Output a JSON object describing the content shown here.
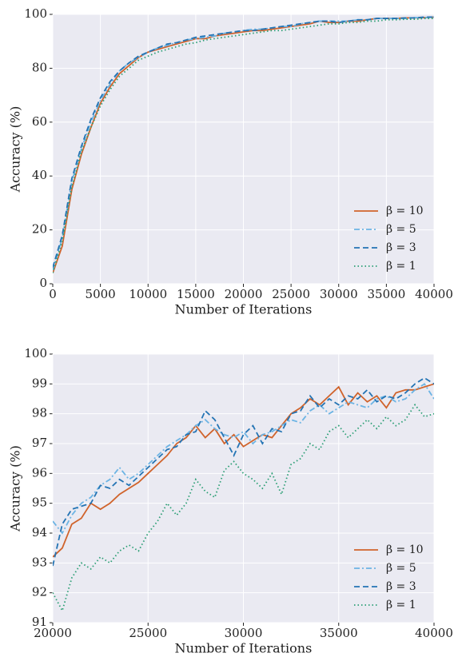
{
  "chart_data": [
    {
      "type": "line",
      "xlabel": "Number of Iterations",
      "ylabel": "Accuracy (%)",
      "x": [
        0,
        1000,
        2000,
        3000,
        4000,
        5000,
        6000,
        7000,
        8000,
        9000,
        10000,
        11000,
        12000,
        13000,
        14000,
        15000,
        16000,
        17000,
        18000,
        19000,
        20000,
        21000,
        22000,
        23000,
        24000,
        25000,
        26000,
        27000,
        28000,
        29000,
        30000,
        31000,
        32000,
        33000,
        34000,
        35000,
        36000,
        37000,
        38000,
        39000,
        40000
      ],
      "series": [
        {
          "name": "β = 10",
          "color": "#d0632b",
          "linestyle": "solid",
          "values": [
            4,
            14,
            35,
            48,
            58,
            67,
            73,
            78,
            81,
            84,
            86,
            87,
            88,
            89,
            90,
            91,
            91,
            92,
            92.5,
            93,
            93.5,
            94,
            94,
            94.5,
            95,
            95.5,
            96,
            96.5,
            97.5,
            97,
            97,
            97.5,
            97.5,
            98,
            98.5,
            98.5,
            98.5,
            98.7,
            98.7,
            98.8,
            99
          ]
        },
        {
          "name": "β = 5",
          "color": "#6cb4e4",
          "linestyle": "dashdot",
          "values": [
            5,
            17,
            38,
            50,
            60,
            68,
            74,
            79,
            82,
            84,
            86,
            87.5,
            88.5,
            89.5,
            90.5,
            91,
            91.5,
            92,
            93,
            93.5,
            94,
            94.5,
            94.5,
            95,
            95.5,
            95.5,
            96.5,
            97,
            97.5,
            97.5,
            97.5,
            97.5,
            98,
            98,
            98.5,
            98.5,
            98.5,
            98.5,
            98.8,
            98.8,
            99
          ]
        },
        {
          "name": "β = 3",
          "color": "#2474b4",
          "linestyle": "dashed",
          "values": [
            6,
            18,
            39,
            51,
            61,
            69,
            75,
            79,
            82,
            84.5,
            86,
            87.5,
            89,
            89.5,
            90.5,
            91.5,
            92,
            92.5,
            93,
            93.5,
            94,
            94,
            94.5,
            95,
            95.5,
            96,
            96.5,
            97,
            97.5,
            97.5,
            97,
            97.5,
            98,
            98,
            98.5,
            98.5,
            98.5,
            98.7,
            98.7,
            99,
            99
          ]
        },
        {
          "name": "β = 1",
          "color": "#2b9e74",
          "linestyle": "dotted",
          "values": [
            4,
            16,
            36,
            49,
            58,
            66,
            72,
            77,
            80,
            83,
            84.5,
            86,
            87,
            88,
            89,
            89.5,
            90.5,
            91,
            91.5,
            92,
            92.5,
            93,
            93.5,
            94,
            94,
            94.5,
            95,
            95.5,
            96,
            96.5,
            96.5,
            97,
            97,
            97.5,
            97.5,
            98,
            98,
            98.2,
            98.2,
            98.5,
            98.5
          ]
        }
      ],
      "xlim": [
        0,
        40000
      ],
      "xticks": [
        0,
        5000,
        10000,
        15000,
        20000,
        25000,
        30000,
        35000,
        40000
      ],
      "ylim": [
        0,
        100
      ],
      "yticks": [
        0,
        20,
        40,
        60,
        80,
        100
      ],
      "grid": true,
      "legend": "lower right"
    },
    {
      "type": "line",
      "xlabel": "Number of Iterations",
      "ylabel": "Accuracy (%)",
      "x": [
        20000,
        20500,
        21000,
        21500,
        22000,
        22500,
        23000,
        23500,
        24000,
        24500,
        25000,
        25500,
        26000,
        26500,
        27000,
        27500,
        28000,
        28500,
        29000,
        29500,
        30000,
        30500,
        31000,
        31500,
        32000,
        32500,
        33000,
        33500,
        34000,
        34500,
        35000,
        35500,
        36000,
        36500,
        37000,
        37500,
        38000,
        38500,
        39000,
        39500,
        40000
      ],
      "series": [
        {
          "name": "β = 10",
          "color": "#d0632b",
          "linestyle": "solid",
          "values": [
            93.2,
            93.5,
            94.3,
            94.5,
            95.0,
            94.8,
            95.0,
            95.3,
            95.5,
            95.7,
            96.0,
            96.3,
            96.6,
            97.0,
            97.2,
            97.6,
            97.2,
            97.5,
            97.0,
            97.3,
            96.9,
            97.1,
            97.3,
            97.2,
            97.6,
            98.0,
            98.2,
            98.5,
            98.3,
            98.6,
            98.9,
            98.3,
            98.7,
            98.4,
            98.6,
            98.2,
            98.7,
            98.8,
            98.8,
            98.9,
            99.0
          ]
        },
        {
          "name": "β = 5",
          "color": "#6cb4e4",
          "linestyle": "dashdot",
          "values": [
            94.4,
            94.0,
            94.6,
            95.0,
            95.2,
            95.6,
            95.8,
            96.2,
            95.8,
            96.0,
            96.3,
            96.6,
            96.9,
            97.1,
            97.3,
            97.6,
            97.8,
            97.5,
            97.3,
            97.2,
            97.4,
            97.0,
            97.3,
            97.4,
            97.6,
            97.8,
            97.7,
            98.1,
            98.3,
            98.0,
            98.2,
            98.4,
            98.3,
            98.2,
            98.5,
            98.6,
            98.4,
            98.5,
            98.8,
            99.0,
            98.5
          ]
        },
        {
          "name": "β = 3",
          "color": "#2474b4",
          "linestyle": "dashed",
          "values": [
            92.9,
            94.3,
            94.8,
            94.9,
            95.0,
            95.6,
            95.5,
            95.8,
            95.6,
            95.9,
            96.2,
            96.5,
            96.8,
            96.9,
            97.3,
            97.4,
            98.1,
            97.8,
            97.2,
            96.6,
            97.3,
            97.6,
            97.0,
            97.5,
            97.4,
            98.0,
            98.1,
            98.6,
            98.2,
            98.5,
            98.3,
            98.6,
            98.5,
            98.8,
            98.4,
            98.6,
            98.5,
            98.7,
            99.0,
            99.2,
            99.0
          ]
        },
        {
          "name": "β = 1",
          "color": "#2b9e74",
          "linestyle": "dotted",
          "values": [
            92.0,
            91.4,
            92.5,
            93.0,
            92.8,
            93.2,
            93.0,
            93.4,
            93.6,
            93.4,
            94.0,
            94.4,
            95.0,
            94.6,
            95.0,
            95.8,
            95.4,
            95.2,
            96.1,
            96.4,
            96.0,
            95.8,
            95.5,
            96.0,
            95.3,
            96.3,
            96.5,
            97.0,
            96.8,
            97.4,
            97.6,
            97.2,
            97.5,
            97.8,
            97.5,
            97.9,
            97.6,
            97.8,
            98.3,
            97.9,
            98.0
          ]
        }
      ],
      "xlim": [
        20000,
        40000
      ],
      "xticks": [
        20000,
        25000,
        30000,
        35000,
        40000
      ],
      "ylim": [
        91,
        100
      ],
      "yticks": [
        91,
        92,
        93,
        94,
        95,
        96,
        97,
        98,
        99,
        100
      ],
      "grid": true,
      "legend": "lower right"
    }
  ]
}
